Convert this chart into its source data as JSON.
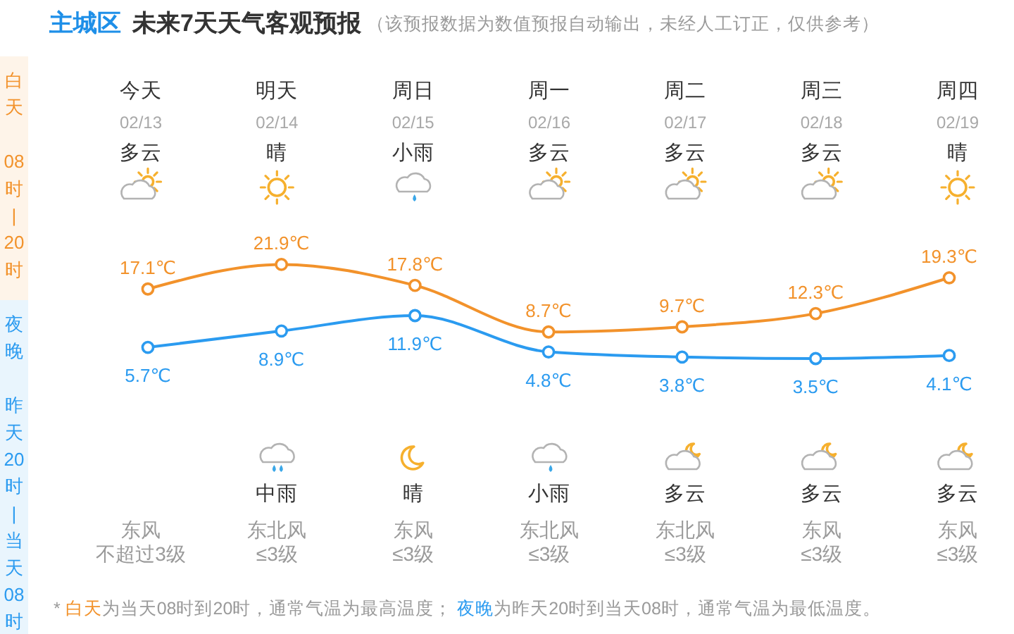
{
  "chart_data": {
    "type": "line",
    "title": "主城区 未来7天天气客观预报",
    "subtitle": "（该预报数据为数值预报自动输出，未经人工订正，仅供参考）",
    "categories": [
      "今天\n02/13\n多云",
      "明天\n02/14\n晴",
      "周日\n02/15\n小雨",
      "周一\n02/16\n多云",
      "周二\n02/17\n多云",
      "周三\n02/18\n多云",
      "周四\n02/19\n晴"
    ],
    "series": [
      {
        "name": "白天08时|20时",
        "color": "#f2922b",
        "values": [
          17.1,
          21.9,
          17.8,
          8.7,
          9.7,
          12.3,
          19.3
        ],
        "value_labels": [
          "17.1℃",
          "21.9℃",
          "17.8℃",
          "8.7℃",
          "9.7℃",
          "12.3℃",
          "19.3℃"
        ]
      },
      {
        "name": "夜晚昨天20时|当天08时",
        "color": "#2b9bf0",
        "values": [
          5.7,
          8.9,
          11.9,
          4.8,
          3.8,
          3.5,
          4.1
        ],
        "value_labels": [
          "5.7℃",
          "8.9℃",
          "11.9℃",
          "4.8℃",
          "3.8℃",
          "3.5℃",
          "4.1℃"
        ]
      }
    ],
    "marker": "circle",
    "tick_labels": "x",
    "annotations": [
      "中雨",
      "晴",
      "小雨",
      "多云",
      "多云",
      "多云",
      "东风",
      "东北风",
      "东风",
      "东北风",
      "东北风",
      "东风",
      "东风",
      "不超过3级",
      "≤3级",
      "≤3级",
      "≤3级",
      "≤3级",
      "≤3级",
      "≤3级",
      "* 白天为当天08时到20时，通常气温为最高温度； 夜晚为昨天20时到当天08时，通常气温为最低温度。"
    ]
  }
}
